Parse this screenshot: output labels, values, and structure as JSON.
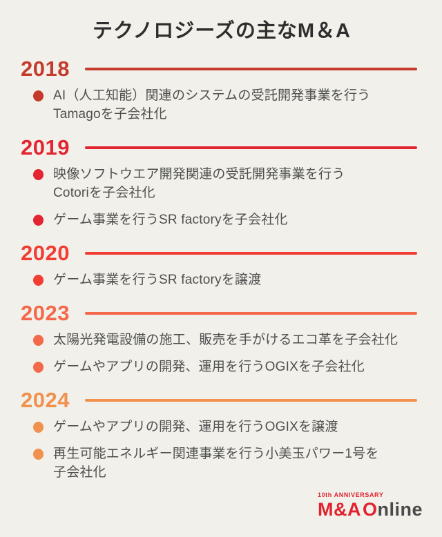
{
  "page": {
    "title": "テクノロジーズの主なM＆A",
    "background_color": "#f1f0ea",
    "title_color": "#2e2e2e",
    "body_text_color": "#4f4f4f"
  },
  "timeline": {
    "sections": [
      {
        "year": "2018",
        "color": "#c43b2b",
        "items": [
          "AI（人工知能）関連のシステムの受託開発事業を行う\nTamagoを子会社化"
        ]
      },
      {
        "year": "2019",
        "color": "#e32431",
        "items": [
          "映像ソフトウエア開発関連の受託開発事業を行う\nCotoriを子会社化",
          "ゲーム事業を行うSR factoryを子会社化"
        ]
      },
      {
        "year": "2020",
        "color": "#f23d33",
        "items": [
          "ゲーム事業を行うSR factoryを譲渡"
        ]
      },
      {
        "year": "2023",
        "color": "#f4694b",
        "items": [
          "太陽光発電設備の施工、販売を手がけるエコ革を子会社化",
          "ゲームやアプリの開発、運用を行うOGIXを子会社化"
        ]
      },
      {
        "year": "2024",
        "color": "#f1914e",
        "items": [
          "ゲームやアプリの開発、運用を行うOGIXを譲渡",
          "再生可能エネルギー関連事業を行う小美玉パワー1号を\n子会社化"
        ]
      }
    ]
  },
  "footer": {
    "anniversary": "10th ANNIVERSARY",
    "logo_red": "M&A",
    "logo_o": "O",
    "logo_gray": "nline",
    "logo_red_color": "#e0232e",
    "logo_gray_color": "#4a4a4a"
  }
}
